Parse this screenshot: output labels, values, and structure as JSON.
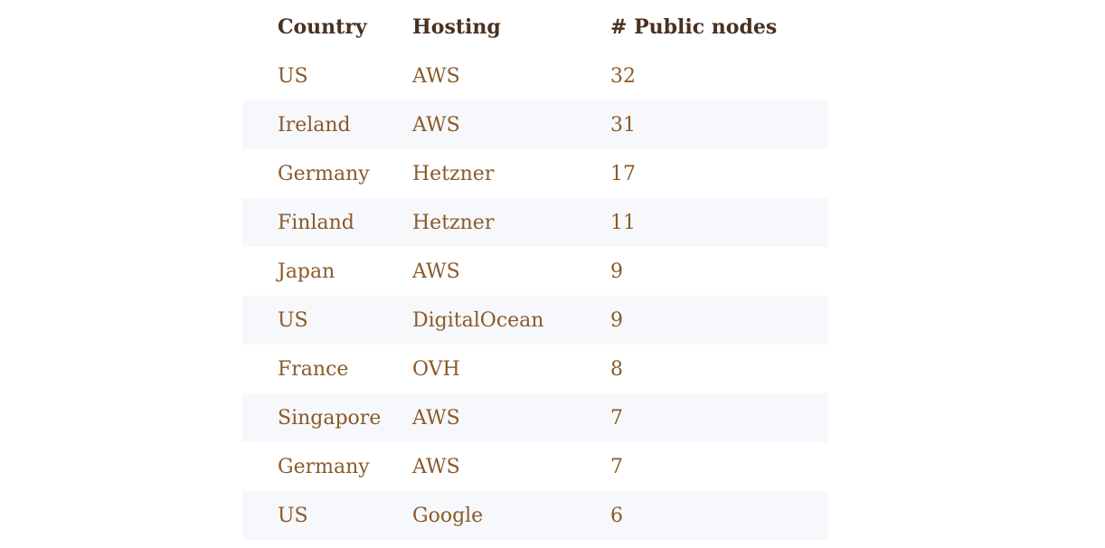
{
  "table": {
    "headers": [
      "Country",
      "Hosting",
      "# Public nodes"
    ],
    "rows": [
      [
        "US",
        "AWS",
        "32"
      ],
      [
        "Ireland",
        "AWS",
        "31"
      ],
      [
        "Germany",
        "Hetzner",
        "17"
      ],
      [
        "Finland",
        "Hetzner",
        "11"
      ],
      [
        "Japan",
        "AWS",
        "9"
      ],
      [
        "US",
        "DigitalOcean",
        "9"
      ],
      [
        "France",
        "OVH",
        "8"
      ],
      [
        "Singapore",
        "AWS",
        "7"
      ],
      [
        "Germany",
        "AWS",
        "7"
      ],
      [
        "US",
        "Google",
        "6"
      ]
    ]
  }
}
